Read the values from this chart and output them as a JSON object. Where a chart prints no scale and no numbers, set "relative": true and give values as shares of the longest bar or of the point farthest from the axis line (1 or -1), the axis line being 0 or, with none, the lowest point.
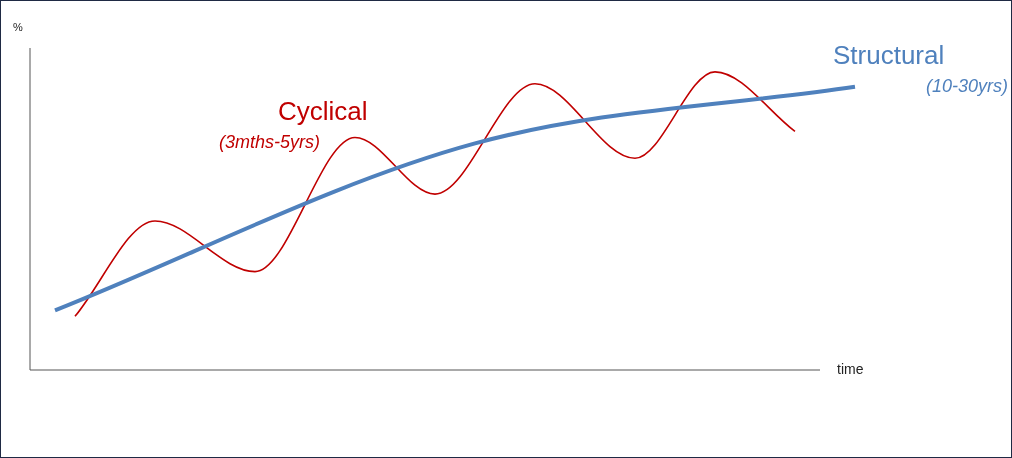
{
  "chart_data": {
    "type": "line",
    "relative": true,
    "xlabel": "time",
    "ylabel": "%",
    "grid": false,
    "legend": false,
    "marker": "none",
    "categories": [
      null,
      null,
      null,
      null,
      null,
      null,
      null,
      null,
      null,
      null,
      null,
      null,
      null,
      null,
      null,
      null,
      null,
      null,
      null,
      null,
      null,
      null,
      null,
      null,
      null,
      null,
      null,
      null,
      null,
      null,
      null,
      null,
      null,
      null,
      null,
      null,
      null,
      null,
      null,
      null,
      null
    ],
    "series": [
      {
        "name": "Structural",
        "color": "#4f81bd",
        "values": [
          0.2,
          null,
          null,
          null,
          null,
          null,
          null,
          null,
          null,
          null,
          null,
          null,
          null,
          null,
          null,
          null,
          null,
          null,
          null,
          null,
          null,
          0.76,
          null,
          null,
          null,
          null,
          null,
          null,
          null,
          null,
          null,
          null,
          null,
          null,
          null,
          null,
          null,
          null,
          null,
          null,
          0.95
        ]
      },
      {
        "name": "Cyclical",
        "color": "#c00000",
        "values": [
          null,
          0.18,
          null,
          null,
          null,
          0.5,
          null,
          null,
          null,
          null,
          0.33,
          null,
          null,
          null,
          null,
          0.78,
          null,
          null,
          null,
          0.59,
          null,
          null,
          null,
          null,
          0.96,
          null,
          null,
          null,
          null,
          0.71,
          null,
          null,
          null,
          1,
          null,
          null,
          null,
          0.8,
          null,
          null,
          null
        ]
      }
    ],
    "annotations": [
      "(10-30yrs)",
      "(3mths-5yrs)"
    ]
  }
}
